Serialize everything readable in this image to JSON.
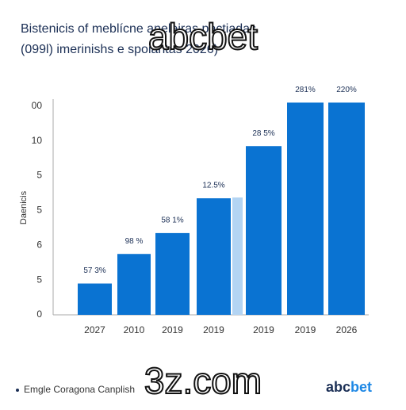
{
  "chart_data": {
    "type": "bar",
    "title": "Bistenicis of meblícne aneleiras pactiadas",
    "subtitle": "(099l) imerinishs e spoiantas 2026)",
    "y_label": "Daenicis",
    "categories": [
      "2027",
      "2010",
      "2019",
      "2019",
      "2019",
      "2019",
      "2026"
    ],
    "series": [
      {
        "name": "Emgle Coragona Canplish",
        "color": "#0a73d2",
        "values": [
          0.9,
          1.75,
          2.35,
          3.35,
          4.85,
          6.1,
          6.1
        ]
      }
    ],
    "annotations": [
      "57 3%",
      "98 %",
      "58 1%",
      "12.5%",
      "28 5%",
      "281%",
      "220%"
    ],
    "ylim": [
      0,
      6.2
    ],
    "yticks": [
      {
        "value": 0,
        "label": "0"
      },
      {
        "value": 1,
        "label": "5"
      },
      {
        "value": 2,
        "label": "6"
      },
      {
        "value": 3,
        "label": "5"
      },
      {
        "value": 4,
        "label": "5"
      },
      {
        "value": 5,
        "label": "10"
      },
      {
        "value": 6,
        "label": "00"
      }
    ],
    "watermarks": [
      "abcbet",
      "3z.com"
    ],
    "logo": [
      "abc",
      "bet"
    ]
  }
}
